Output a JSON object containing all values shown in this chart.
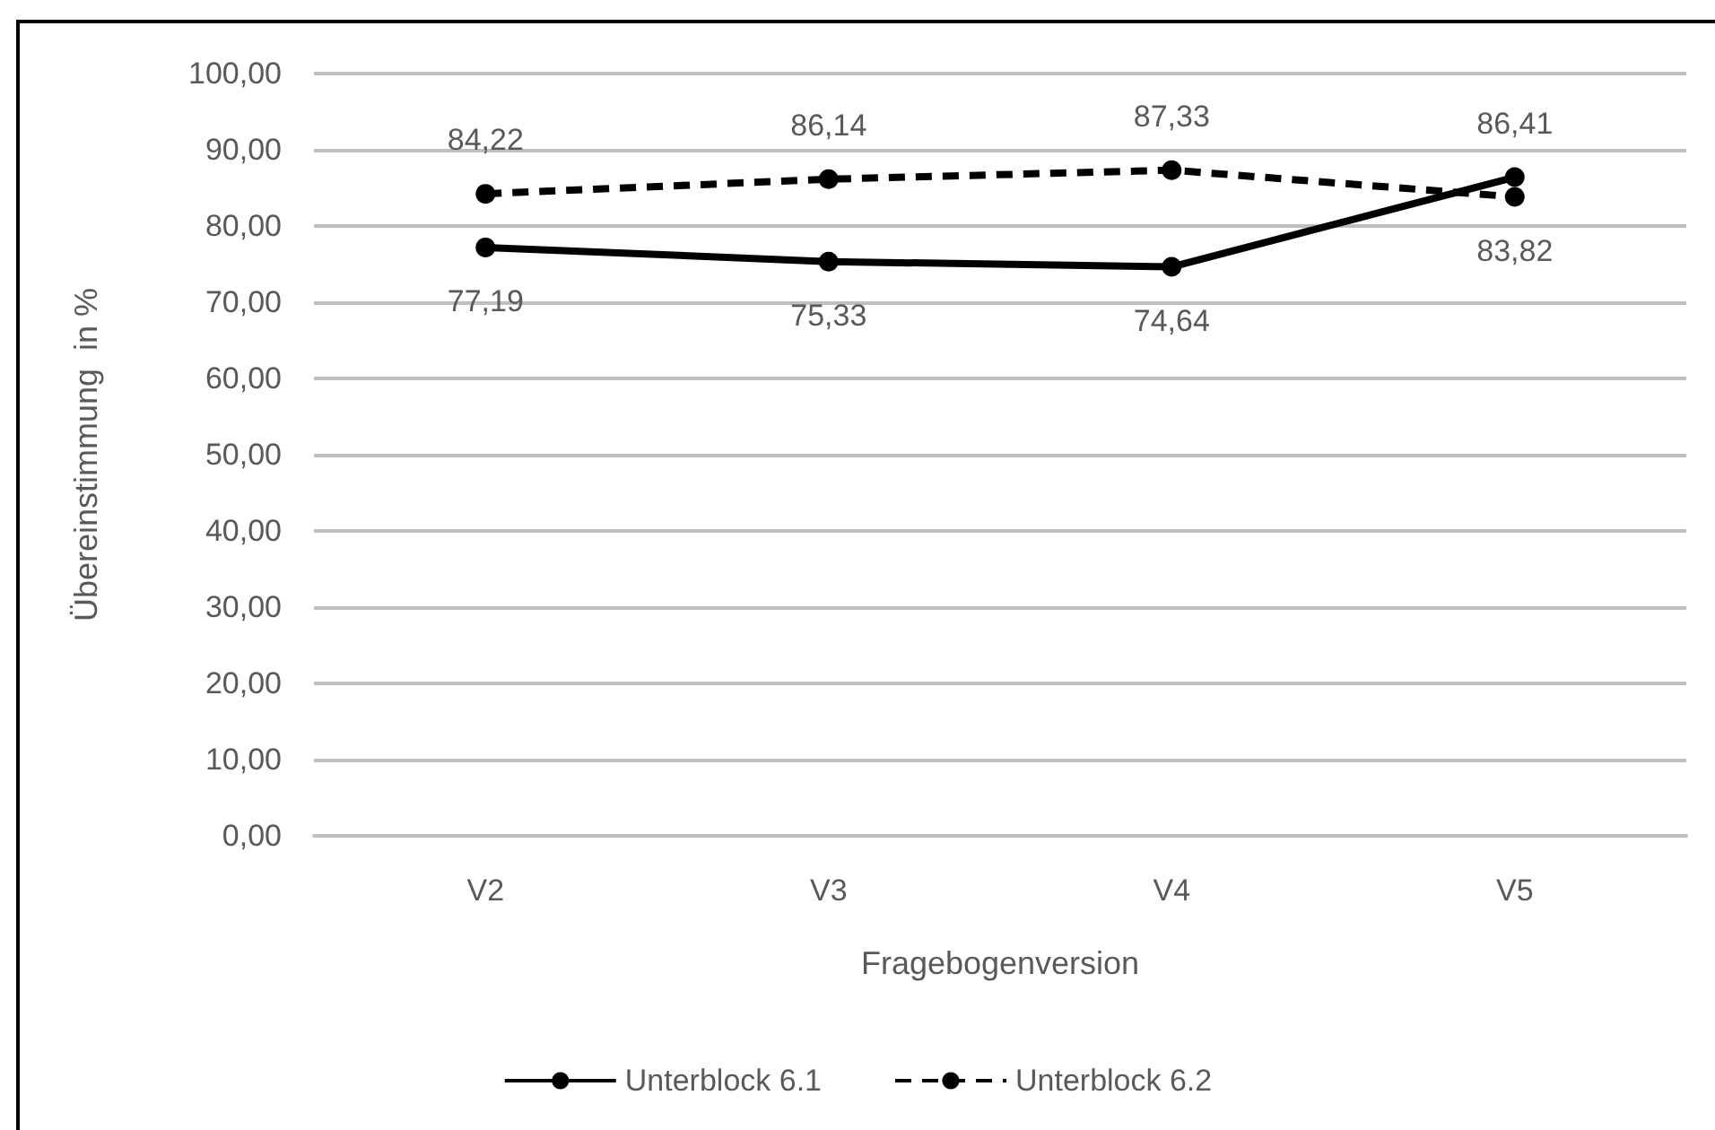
{
  "chart_data": {
    "type": "line",
    "xlabel": "Fragebogenversion",
    "ylabel": "Übereinstimmung  in %",
    "categories": [
      "V2",
      "V3",
      "V4",
      "V5"
    ],
    "series": [
      {
        "name": "Unterblock 6.1",
        "color": "#000000",
        "line_style": "solid",
        "values": [
          77.19,
          75.33,
          74.64,
          86.41
        ],
        "value_labels": [
          "77,19",
          "75,33",
          "74,64",
          "86,41"
        ]
      },
      {
        "name": "Unterblock 6.2",
        "color": "#000000",
        "line_style": "dashed",
        "values": [
          84.22,
          86.14,
          87.33,
          83.82
        ],
        "value_labels": [
          "84,22",
          "86,14",
          "87,33",
          "83,82"
        ]
      }
    ],
    "ylim": [
      0,
      100
    ],
    "yticks": [
      {
        "value": 0,
        "label": "0,00"
      },
      {
        "value": 10,
        "label": "10,00"
      },
      {
        "value": 20,
        "label": "20,00"
      },
      {
        "value": 30,
        "label": "30,00"
      },
      {
        "value": 40,
        "label": "40,00"
      },
      {
        "value": 50,
        "label": "50,00"
      },
      {
        "value": 60,
        "label": "60,00"
      },
      {
        "value": 70,
        "label": "70,00"
      },
      {
        "value": 80,
        "label": "80,00"
      },
      {
        "value": 90,
        "label": "90,00"
      },
      {
        "value": 100,
        "label": "100,00"
      }
    ],
    "grid": "y",
    "legend": "bottom",
    "marker": "circle"
  }
}
